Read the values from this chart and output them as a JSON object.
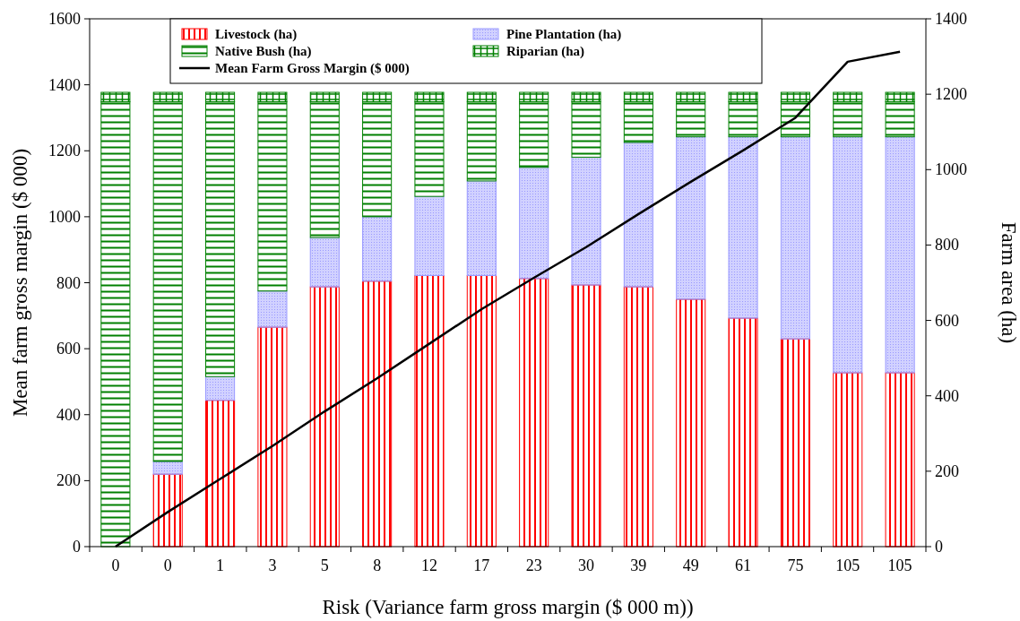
{
  "chart_data": {
    "type": "bar",
    "stacked": true,
    "xlabel": "Risk (Variance farm gross margin ($ 000 m))",
    "ylabel": "Mean farm gross margin ($ 000)",
    "y2label": "Farm area (ha)",
    "categories": [
      "0",
      "0",
      "1",
      "3",
      "5",
      "8",
      "12",
      "17",
      "23",
      "30",
      "39",
      "49",
      "61",
      "75",
      "105",
      "105"
    ],
    "ylim": [
      0,
      1600
    ],
    "yticks": [
      0,
      200,
      400,
      600,
      800,
      1000,
      1200,
      1400,
      1600
    ],
    "y2lim": [
      0,
      1400
    ],
    "y2ticks": [
      0,
      200,
      400,
      600,
      800,
      1000,
      1200,
      1400
    ],
    "legend": "top",
    "grid": false,
    "series": [
      {
        "name": "Livestock (ha)",
        "color": "#ff0000",
        "axis": "y2",
        "values": [
          0,
          192,
          388,
          582,
          689,
          704,
          719,
          719,
          711,
          694,
          689,
          656,
          606,
          551,
          461,
          461
        ]
      },
      {
        "name": "Pine Plantation (ha)",
        "color": "#9999ff",
        "axis": "y2",
        "values": [
          0,
          34,
          63,
          96,
          131,
          171,
          210,
          251,
          295,
          339,
          383,
          431,
          481,
          536,
          626,
          626
        ]
      },
      {
        "name": "Native Bush (ha)",
        "color": "#008000",
        "axis": "y2",
        "values": [
          1180,
          954,
          729,
          502,
          360,
          305,
          251,
          210,
          174,
          147,
          108,
          93,
          93,
          93,
          93,
          93
        ]
      },
      {
        "name": "Riparian (ha)",
        "color": "#008000",
        "axis": "y2",
        "values": [
          25,
          25,
          25,
          25,
          25,
          25,
          25,
          25,
          25,
          25,
          25,
          25,
          25,
          25,
          25,
          25
        ]
      },
      {
        "name": "Mean Farm Gross Margin ($ 000)",
        "type": "line",
        "color": "#000000",
        "values": [
          0,
          105,
          205,
          305,
          410,
          510,
          615,
          720,
          815,
          908,
          1008,
          1106,
          1201,
          1300,
          1470,
          1500
        ]
      }
    ]
  }
}
